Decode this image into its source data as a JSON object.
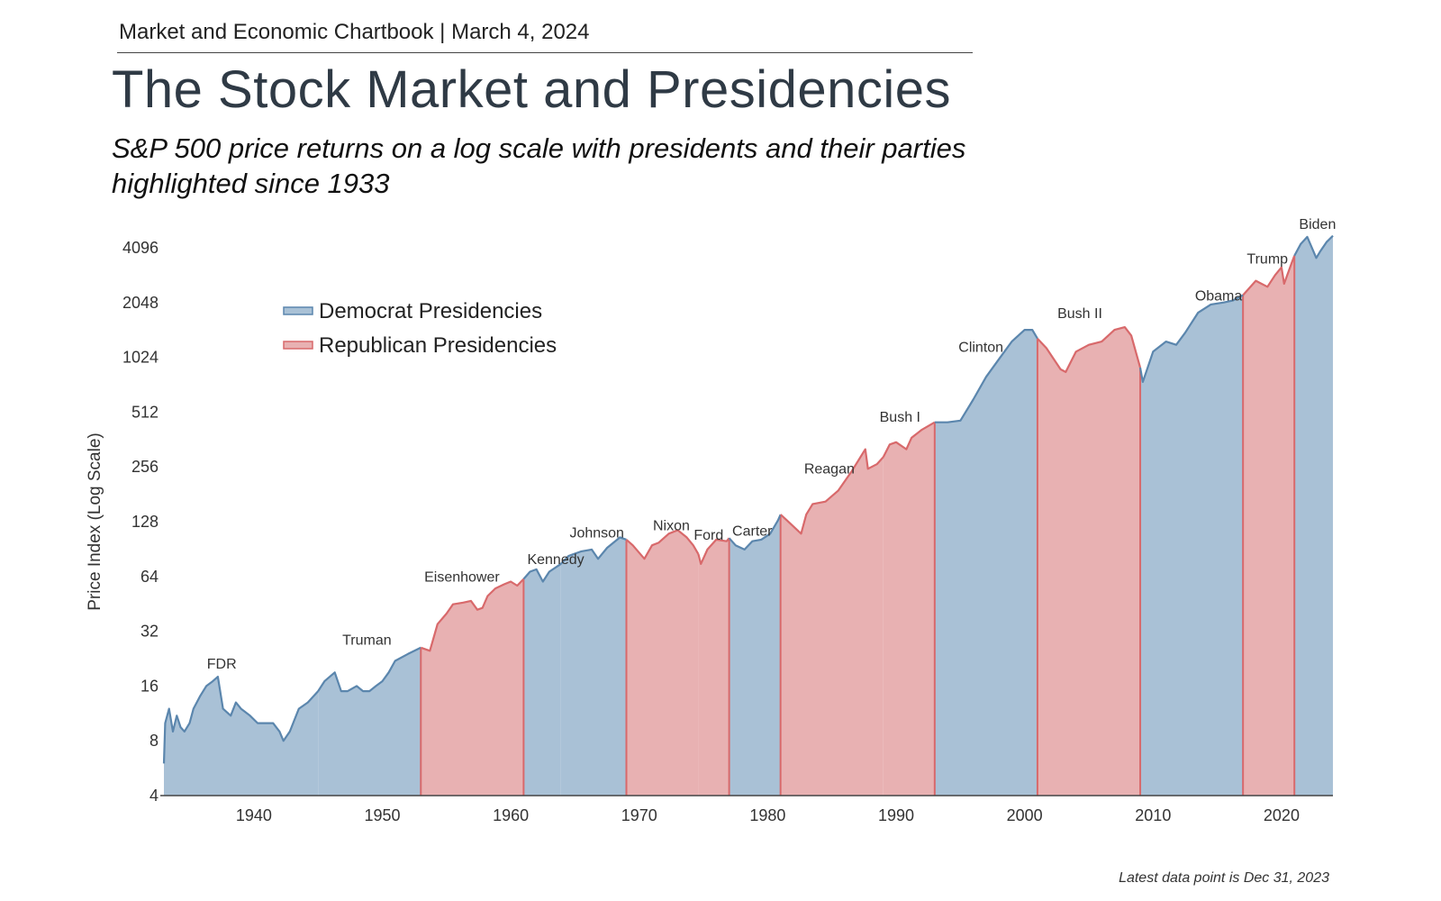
{
  "header": {
    "chartbook": "Market and Economic Chartbook | March 4, 2024",
    "title": "The Stock Market and Presidencies",
    "subtitle": "S&P 500 price returns on a log scale with presidents and their parties highlighted since 1933",
    "footnote": "Latest data point is Dec 31, 2023"
  },
  "colors": {
    "dem_fill": "#a9c1d6",
    "dem_line": "#5b86ad",
    "rep_fill": "#e8b1b2",
    "rep_line": "#d8696b",
    "axis": "#444444"
  },
  "chart_data": {
    "type": "area",
    "title": "The Stock Market and Presidencies",
    "ylabel": "Price Index (Log Scale)",
    "xlabel": "",
    "y_scale": "log2",
    "xlim": [
      1933,
      2024
    ],
    "ylim": [
      4,
      5000
    ],
    "x_ticks": [
      1940,
      1950,
      1960,
      1970,
      1980,
      1990,
      2000,
      2010,
      2020
    ],
    "y_ticks": [
      4,
      8,
      16,
      32,
      64,
      128,
      256,
      512,
      1024,
      2048,
      4096
    ],
    "legend": [
      {
        "label": "Democrat Presidencies",
        "party": "D"
      },
      {
        "label": "Republican Presidencies",
        "party": "R"
      }
    ],
    "legend_position": "top-left",
    "presidencies": [
      {
        "name": "FDR",
        "party": "D",
        "start": 1933,
        "end": 1945
      },
      {
        "name": "Truman",
        "party": "D",
        "start": 1945,
        "end": 1953
      },
      {
        "name": "Eisenhower",
        "party": "R",
        "start": 1953,
        "end": 1961
      },
      {
        "name": "Kennedy",
        "party": "D",
        "start": 1961,
        "end": 1963.9
      },
      {
        "name": "Johnson",
        "party": "D",
        "start": 1963.9,
        "end": 1969
      },
      {
        "name": "Nixon",
        "party": "R",
        "start": 1969,
        "end": 1974.6
      },
      {
        "name": "Ford",
        "party": "R",
        "start": 1974.6,
        "end": 1977
      },
      {
        "name": "Carter",
        "party": "D",
        "start": 1977,
        "end": 1981
      },
      {
        "name": "Reagan",
        "party": "R",
        "start": 1981,
        "end": 1989
      },
      {
        "name": "Bush I",
        "party": "R",
        "start": 1989,
        "end": 1993
      },
      {
        "name": "Clinton",
        "party": "D",
        "start": 1993,
        "end": 2001
      },
      {
        "name": "Bush II",
        "party": "R",
        "start": 2001,
        "end": 2009
      },
      {
        "name": "Obama",
        "party": "D",
        "start": 2009,
        "end": 2017
      },
      {
        "name": "Trump",
        "party": "R",
        "start": 2017,
        "end": 2021
      },
      {
        "name": "Biden",
        "party": "D",
        "start": 2021,
        "end": 2024
      }
    ],
    "series": [
      {
        "name": "S&P 500 Price Index",
        "x": [
          1933.0,
          1933.1,
          1933.4,
          1933.7,
          1934.0,
          1934.3,
          1934.6,
          1935.0,
          1935.3,
          1935.8,
          1936.3,
          1936.8,
          1937.2,
          1937.6,
          1938.2,
          1938.6,
          1939.0,
          1939.7,
          1940.3,
          1940.8,
          1941.5,
          1942.0,
          1942.3,
          1942.8,
          1943.5,
          1944.2,
          1945.0,
          1945.5,
          1946.3,
          1946.8,
          1947.3,
          1948.0,
          1948.5,
          1949.0,
          1949.5,
          1950.0,
          1950.5,
          1951.0,
          1952.0,
          1953.0,
          1953.7,
          1954.3,
          1955.0,
          1955.5,
          1956.3,
          1956.9,
          1957.4,
          1957.8,
          1958.2,
          1958.8,
          1959.5,
          1960.0,
          1960.5,
          1961.0,
          1961.5,
          1962.0,
          1962.5,
          1963.0,
          1963.9,
          1964.5,
          1965.5,
          1966.3,
          1966.8,
          1967.5,
          1968.5,
          1969.0,
          1969.5,
          1970.4,
          1971.0,
          1971.5,
          1972.3,
          1973.0,
          1973.7,
          1974.2,
          1974.6,
          1974.8,
          1975.3,
          1976.0,
          1976.8,
          1977.0,
          1977.5,
          1978.2,
          1978.8,
          1979.5,
          1980.2,
          1980.8,
          1981.0,
          1981.5,
          1982.6,
          1983.0,
          1983.5,
          1984.5,
          1985.5,
          1986.5,
          1987.6,
          1987.8,
          1988.5,
          1989.0,
          1989.5,
          1990.0,
          1990.8,
          1991.2,
          1992.0,
          1993.0,
          1994.0,
          1995.0,
          1996.0,
          1997.0,
          1998.0,
          1999.0,
          2000.0,
          2000.6,
          2001.0,
          2001.7,
          2002.8,
          2003.2,
          2004.0,
          2005.0,
          2006.0,
          2007.0,
          2007.8,
          2008.3,
          2009.0,
          2009.2,
          2010.0,
          2011.0,
          2011.8,
          2012.5,
          2013.5,
          2014.5,
          2015.5,
          2016.2,
          2017.0,
          2018.0,
          2018.9,
          2019.5,
          2020.0,
          2020.2,
          2020.8,
          2021.0,
          2021.5,
          2022.0,
          2022.7,
          2023.0,
          2023.5,
          2024.0
        ],
        "values": [
          6,
          10,
          12,
          9,
          11,
          9.5,
          9,
          10,
          12,
          14,
          16,
          17,
          18,
          12,
          11,
          13,
          12,
          11,
          10,
          10,
          10,
          9,
          8,
          9,
          12,
          13,
          15,
          17,
          19,
          15,
          15,
          16,
          15,
          15,
          16,
          17,
          19,
          22,
          24,
          26,
          25,
          35,
          40,
          45,
          46,
          47,
          42,
          43,
          50,
          55,
          58,
          60,
          57,
          62,
          68,
          70,
          60,
          68,
          75,
          83,
          88,
          90,
          80,
          92,
          105,
          102,
          95,
          80,
          95,
          98,
          110,
          115,
          105,
          95,
          85,
          75,
          90,
          102,
          100,
          104,
          95,
          90,
          100,
          102,
          110,
          130,
          140,
          130,
          110,
          140,
          160,
          165,
          190,
          240,
          320,
          250,
          265,
          290,
          340,
          350,
          320,
          370,
          410,
          450,
          450,
          460,
          600,
          800,
          1000,
          1250,
          1450,
          1450,
          1300,
          1150,
          880,
          850,
          1100,
          1200,
          1250,
          1450,
          1500,
          1350,
          900,
          750,
          1100,
          1250,
          1200,
          1400,
          1800,
          2000,
          2050,
          2100,
          2250,
          2700,
          2500,
          2900,
          3200,
          2600,
          3400,
          3700,
          4300,
          4700,
          3600,
          3900,
          4400,
          4770
        ]
      }
    ]
  }
}
